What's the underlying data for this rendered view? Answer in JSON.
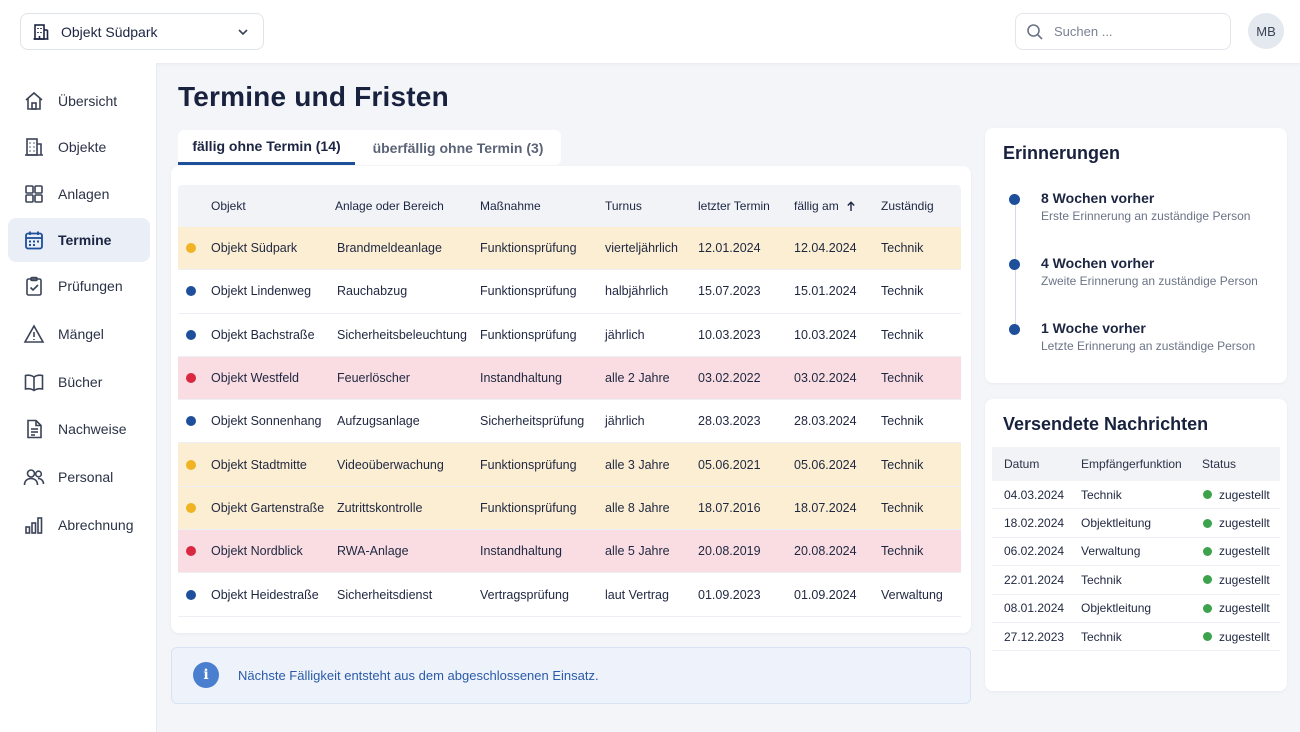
{
  "topbar": {
    "object_select": "Objekt Südpark",
    "search_placeholder": "Suchen ...",
    "avatar_initials": "MB"
  },
  "sidebar": {
    "items": [
      {
        "label": "Übersicht",
        "icon": "home-icon"
      },
      {
        "label": "Objekte",
        "icon": "building-icon"
      },
      {
        "label": "Anlagen",
        "icon": "grid-icon"
      },
      {
        "label": "Termine",
        "icon": "calendar-icon",
        "active": true
      },
      {
        "label": "Prüfungen",
        "icon": "clipboard-check-icon"
      },
      {
        "label": "Mängel",
        "icon": "warning-icon"
      },
      {
        "label": "Bücher",
        "icon": "book-icon"
      },
      {
        "label": "Nachweise",
        "icon": "document-icon"
      },
      {
        "label": "Personal",
        "icon": "users-icon"
      },
      {
        "label": "Abrechnung",
        "icon": "bar-chart-icon"
      }
    ]
  },
  "main": {
    "title": "Termine und Fristen",
    "tabs": [
      {
        "label": "fällig ohne Termin (14)",
        "active": true
      },
      {
        "label": "überfällig ohne Termin (3)",
        "active": false
      }
    ],
    "table": {
      "columns": [
        "Objekt",
        "Anlage oder Bereich",
        "Maßnahme",
        "Turnus",
        "letzter Termin",
        "fällig am",
        "Zuständig"
      ],
      "rows": [
        {
          "status": "warn",
          "objekt": "Objekt Südpark",
          "anlage": "Brandmeldeanlage",
          "massnahme": "Funktionsprüfung",
          "turnus": "vierteljährlich",
          "letzter": "12.01.2024",
          "faellig": "12.04.2024",
          "zustaendig": "Technik"
        },
        {
          "status": "normal",
          "objekt": "Objekt Lindenweg",
          "anlage": "Rauchabzug",
          "massnahme": "Funktionsprüfung",
          "turnus": "halbjährlich",
          "letzter": "15.07.2023",
          "faellig": "15.01.2024",
          "zustaendig": "Technik"
        },
        {
          "status": "normal",
          "objekt": "Objekt Bachstraße",
          "anlage": "Sicherheitsbeleuchtung",
          "massnahme": "Funktionsprüfung",
          "turnus": "jährlich",
          "letzter": "10.03.2023",
          "faellig": "10.03.2024",
          "zustaendig": "Technik"
        },
        {
          "status": "alert",
          "objekt": "Objekt Westfeld",
          "anlage": "Feuerlöscher",
          "massnahme": "Instandhaltung",
          "turnus": "alle 2 Jahre",
          "letzter": "03.02.2022",
          "faellig": "03.02.2024",
          "zustaendig": "Technik"
        },
        {
          "status": "normal",
          "objekt": "Objekt Sonnenhang",
          "anlage": "Aufzugsanlage",
          "massnahme": "Sicherheitsprüfung",
          "turnus": "jährlich",
          "letzter": "28.03.2023",
          "faellig": "28.03.2024",
          "zustaendig": "Technik"
        },
        {
          "status": "warn",
          "objekt": "Objekt Stadtmitte",
          "anlage": "Videoüberwachung",
          "massnahme": "Funktionsprüfung",
          "turnus": "alle 3 Jahre",
          "letzter": "05.06.2021",
          "faellig": "05.06.2024",
          "zustaendig": "Technik"
        },
        {
          "status": "warn",
          "objekt": "Objekt Gartenstraße",
          "anlage": "Zutrittskontrolle",
          "massnahme": "Funktionsprüfung",
          "turnus": "alle 8 Jahre",
          "letzter": "18.07.2016",
          "faellig": "18.07.2024",
          "zustaendig": "Technik"
        },
        {
          "status": "alert",
          "objekt": "Objekt Nordblick",
          "anlage": "RWA-Anlage",
          "massnahme": "Instandhaltung",
          "turnus": "alle 5 Jahre",
          "letzter": "20.08.2019",
          "faellig": "20.08.2024",
          "zustaendig": "Technik"
        },
        {
          "status": "normal",
          "objekt": "Objekt Heidestraße",
          "anlage": "Sicherheitsdienst",
          "massnahme": "Vertragsprüfung",
          "turnus": "laut Vertrag",
          "letzter": "01.09.2023",
          "faellig": "01.09.2024",
          "zustaendig": "Verwaltung"
        }
      ]
    },
    "info": "Nächste Fälligkeit entsteht aus dem abgeschlossenen Einsatz."
  },
  "reminders": {
    "title": "Erinnerungen",
    "items": [
      {
        "title": "8 Wochen vorher",
        "subtitle": "Erste Erinnerung an zuständige Person"
      },
      {
        "title": "4 Wochen vorher",
        "subtitle": "Zweite Erinnerung an zuständige Person"
      },
      {
        "title": "1 Woche vorher",
        "subtitle": "Letzte Erinnerung an zuständige Person"
      }
    ]
  },
  "messages": {
    "title": "Versendete Nachrichten",
    "columns": [
      "Datum",
      "Empfängerfunktion",
      "Status"
    ],
    "rows": [
      {
        "datum": "04.03.2024",
        "empfaenger": "Technik",
        "status": "zugestellt"
      },
      {
        "datum": "18.02.2024",
        "empfaenger": "Objektleitung",
        "status": "zugestellt"
      },
      {
        "datum": "06.02.2024",
        "empfaenger": "Verwaltung",
        "status": "zugestellt"
      },
      {
        "datum": "22.01.2024",
        "empfaenger": "Technik",
        "status": "zugestellt"
      },
      {
        "datum": "08.01.2024",
        "empfaenger": "Objektleitung",
        "status": "zugestellt"
      },
      {
        "datum": "27.12.2023",
        "empfaenger": "Technik",
        "status": "zugestellt"
      }
    ]
  },
  "colors": {
    "accent": "#1d4f9a",
    "warn_row": "#fbeed2",
    "alert_row": "#f9dde2",
    "warn_dot": "#f0b323",
    "alert_dot": "#d9283f",
    "normal_dot": "#1d4f9a",
    "delivered": "#3ca34c"
  }
}
